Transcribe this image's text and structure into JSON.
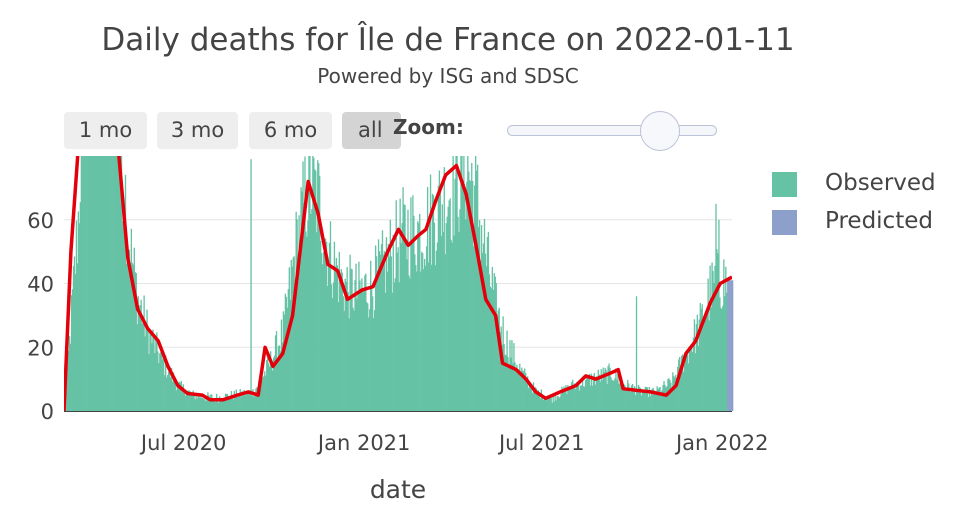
{
  "title": "Daily deaths for Île de France on 2022-01-11",
  "subtitle": "Powered by ISG and SDSC",
  "range_buttons": [
    {
      "label": "1 mo",
      "active": false
    },
    {
      "label": "3 mo",
      "active": false
    },
    {
      "label": "6 mo",
      "active": false
    },
    {
      "label": "all",
      "active": true
    }
  ],
  "zoom": {
    "label": "Zoom:",
    "level": 0.72
  },
  "legend": [
    {
      "label": "Observed",
      "color": "#66c2a5"
    },
    {
      "label": "Predicted",
      "color": "#8da0cb"
    }
  ],
  "colors": {
    "observed": "#66c2a5",
    "predicted": "#8da0cb",
    "trend": "#e3000b",
    "grid": "#e5e5e5"
  },
  "chart_data": {
    "type": "bar",
    "title": "Daily deaths for Île de France on 2022-01-11",
    "subtitle": "Powered by ISG and SDSC",
    "xlabel": "date",
    "ylabel": "",
    "x_range": [
      "2020-03-01",
      "2022-01-11"
    ],
    "ylim": [
      0,
      80
    ],
    "y_ticks": [
      0,
      20,
      40,
      60
    ],
    "x_ticks": [
      "2020-07-01",
      "2021-01-01",
      "2021-07-01",
      "2022-01-01"
    ],
    "x_tick_labels": [
      "Jul 2020",
      "Jan 2021",
      "Jul 2021",
      "Jan 2022"
    ],
    "grid": true,
    "legend_position": "right",
    "observed_key_points": [
      [
        "2020-03-01",
        0
      ],
      [
        "2020-03-15",
        60
      ],
      [
        "2020-03-25",
        150
      ],
      [
        "2020-04-05",
        200
      ],
      [
        "2020-04-20",
        120
      ],
      [
        "2020-04-28",
        85
      ],
      [
        "2020-05-05",
        55
      ],
      [
        "2020-05-15",
        35
      ],
      [
        "2020-05-25",
        25
      ],
      [
        "2020-06-10",
        15
      ],
      [
        "2020-06-25",
        8
      ],
      [
        "2020-07-10",
        5
      ],
      [
        "2020-08-01",
        4
      ],
      [
        "2020-08-20",
        5
      ],
      [
        "2020-09-10",
        6
      ],
      [
        "2020-09-25",
        14
      ],
      [
        "2020-10-10",
        25
      ],
      [
        "2020-10-25",
        55
      ],
      [
        "2020-11-05",
        72
      ],
      [
        "2020-11-15",
        66
      ],
      [
        "2020-11-25",
        50
      ],
      [
        "2020-12-10",
        40
      ],
      [
        "2020-12-25",
        37
      ],
      [
        "2021-01-10",
        40
      ],
      [
        "2021-01-25",
        48
      ],
      [
        "2021-02-10",
        56
      ],
      [
        "2021-03-01",
        57
      ],
      [
        "2021-03-20",
        65
      ],
      [
        "2021-04-05",
        73
      ],
      [
        "2021-04-15",
        78
      ],
      [
        "2021-04-25",
        66
      ],
      [
        "2021-05-05",
        48
      ],
      [
        "2021-05-15",
        32
      ],
      [
        "2021-05-25",
        22
      ],
      [
        "2021-06-10",
        12
      ],
      [
        "2021-06-25",
        6
      ],
      [
        "2021-07-10",
        4
      ],
      [
        "2021-08-01",
        8
      ],
      [
        "2021-08-20",
        10
      ],
      [
        "2021-09-10",
        12
      ],
      [
        "2021-09-25",
        8
      ],
      [
        "2021-10-10",
        6
      ],
      [
        "2021-10-25",
        6
      ],
      [
        "2021-11-10",
        9
      ],
      [
        "2021-11-25",
        18
      ],
      [
        "2021-12-10",
        28
      ],
      [
        "2021-12-20",
        38
      ],
      [
        "2021-12-30",
        42
      ],
      [
        "2022-01-05",
        40
      ]
    ],
    "spikes": [
      [
        "2020-09-07",
        79
      ],
      [
        "2021-10-05",
        36
      ],
      [
        "2021-12-25",
        65
      ],
      [
        "2021-12-28",
        60
      ]
    ],
    "predicted_range": [
      "2022-01-06",
      "2022-01-11"
    ],
    "predicted_value": 41,
    "trend_points": [
      [
        "2020-03-01",
        0
      ],
      [
        "2020-03-08",
        50
      ],
      [
        "2020-03-15",
        80
      ],
      [
        "2020-03-25",
        150
      ],
      [
        "2020-04-05",
        190
      ],
      [
        "2020-04-18",
        120
      ],
      [
        "2020-04-26",
        80
      ],
      [
        "2020-05-05",
        48
      ],
      [
        "2020-05-15",
        32
      ],
      [
        "2020-05-25",
        26
      ],
      [
        "2020-06-05",
        22
      ],
      [
        "2020-06-15",
        14
      ],
      [
        "2020-06-25",
        8
      ],
      [
        "2020-07-05",
        5.5
      ],
      [
        "2020-07-20",
        5
      ],
      [
        "2020-07-28",
        3.5
      ],
      [
        "2020-08-10",
        3.5
      ],
      [
        "2020-08-25",
        5
      ],
      [
        "2020-09-05",
        6
      ],
      [
        "2020-09-15",
        5
      ],
      [
        "2020-09-22",
        20
      ],
      [
        "2020-09-30",
        14
      ],
      [
        "2020-10-10",
        18
      ],
      [
        "2020-10-20",
        30
      ],
      [
        "2020-11-05",
        72
      ],
      [
        "2020-11-15",
        62
      ],
      [
        "2020-11-25",
        46
      ],
      [
        "2020-12-05",
        44
      ],
      [
        "2020-12-15",
        35
      ],
      [
        "2020-12-30",
        38
      ],
      [
        "2021-01-10",
        39
      ],
      [
        "2021-01-25",
        50
      ],
      [
        "2021-02-05",
        57
      ],
      [
        "2021-02-15",
        52
      ],
      [
        "2021-02-25",
        55
      ],
      [
        "2021-03-05",
        57
      ],
      [
        "2021-03-15",
        66
      ],
      [
        "2021-03-25",
        74
      ],
      [
        "2021-04-05",
        77
      ],
      [
        "2021-04-15",
        68
      ],
      [
        "2021-04-25",
        52
      ],
      [
        "2021-05-05",
        35
      ],
      [
        "2021-05-15",
        30
      ],
      [
        "2021-05-22",
        15
      ],
      [
        "2021-06-05",
        13
      ],
      [
        "2021-06-15",
        10
      ],
      [
        "2021-06-25",
        6
      ],
      [
        "2021-07-05",
        4
      ],
      [
        "2021-07-20",
        6
      ],
      [
        "2021-08-05",
        8
      ],
      [
        "2021-08-15",
        11
      ],
      [
        "2021-08-25",
        10
      ],
      [
        "2021-09-10",
        12
      ],
      [
        "2021-09-17",
        13
      ],
      [
        "2021-09-22",
        7
      ],
      [
        "2021-10-05",
        6.5
      ],
      [
        "2021-10-20",
        6
      ],
      [
        "2021-11-05",
        5
      ],
      [
        "2021-11-15",
        8
      ],
      [
        "2021-11-25",
        18
      ],
      [
        "2021-12-05",
        22
      ],
      [
        "2021-12-20",
        34
      ],
      [
        "2021-12-30",
        40
      ],
      [
        "2022-01-11",
        42
      ]
    ]
  }
}
